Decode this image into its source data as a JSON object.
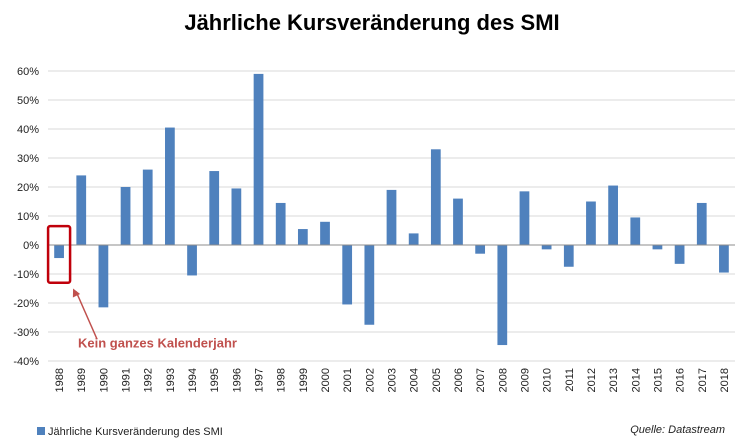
{
  "chart_data": {
    "type": "bar",
    "title": "Jährliche Kursveränderung des SMI",
    "xlabel": "",
    "ylabel": "",
    "ylim": [
      -40,
      60
    ],
    "yticks": [
      "60%",
      "50%",
      "40%",
      "30%",
      "20%",
      "10%",
      "0%",
      "-10%",
      "-20%",
      "-30%",
      "-40%"
    ],
    "grid": true,
    "categories": [
      "1988",
      "1989",
      "1990",
      "1991",
      "1992",
      "1993",
      "1994",
      "1995",
      "1996",
      "1997",
      "1998",
      "1999",
      "2000",
      "2001",
      "2002",
      "2003",
      "2004",
      "2005",
      "2006",
      "2007",
      "2008",
      "2009",
      "2010",
      "2011",
      "2012",
      "2013",
      "2014",
      "2015",
      "2016",
      "2017",
      "2018"
    ],
    "series": [
      {
        "name": "Jährliche Kursveränderung des SMI",
        "color": "#4f81bd",
        "values": [
          -4.5,
          24,
          -21.5,
          20,
          26,
          40.5,
          -10.5,
          25.5,
          19.5,
          59,
          14.5,
          5.5,
          8,
          -20.5,
          -27.5,
          19,
          4,
          33,
          16,
          -3,
          -34.5,
          18.5,
          -1.5,
          -7.5,
          15,
          20.5,
          9.5,
          -1.5,
          -6.5,
          14.5,
          -9.5
        ]
      }
    ],
    "legend_position": "bottom-left",
    "annotation": {
      "text": "Kein ganzes Kalenderjahr",
      "color": "#c0504d",
      "target_category": "1988"
    },
    "source": "Quelle: Datastream"
  }
}
